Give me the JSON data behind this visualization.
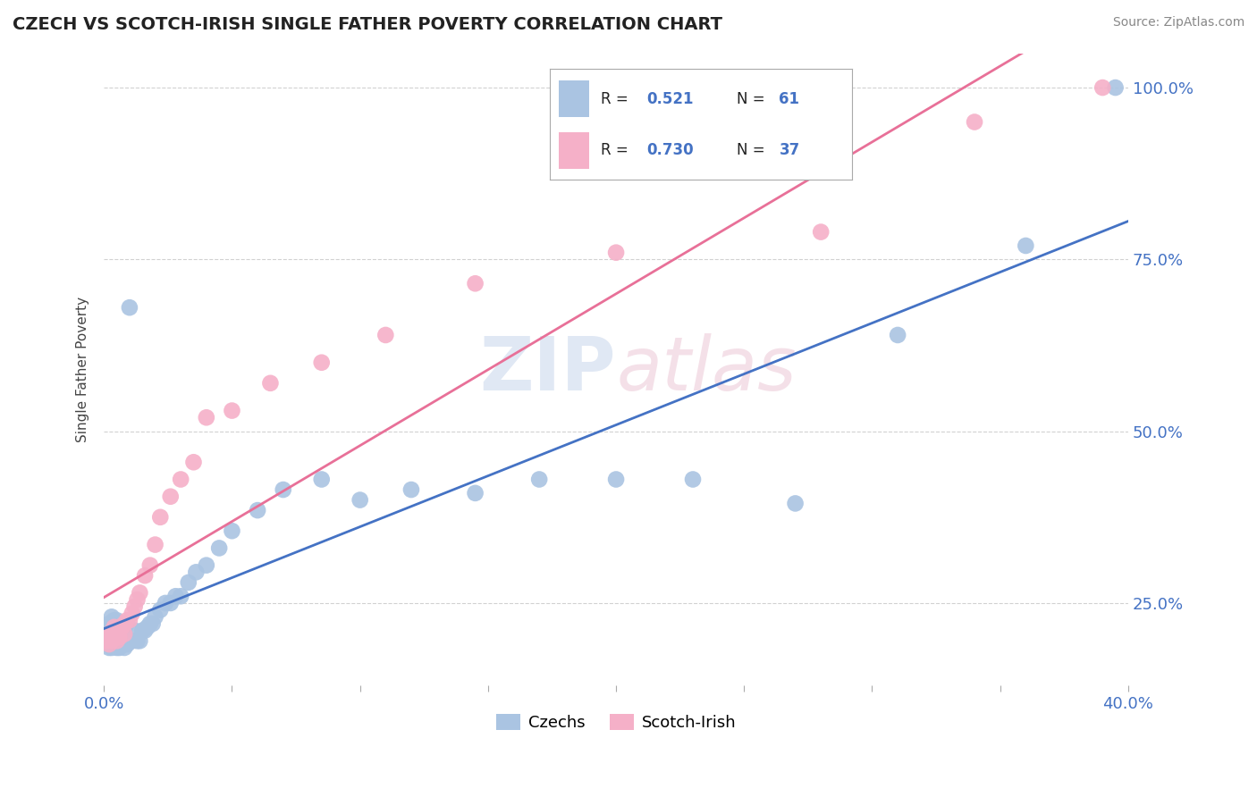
{
  "title": "CZECH VS SCOTCH-IRISH SINGLE FATHER POVERTY CORRELATION CHART",
  "source": "Source: ZipAtlas.com",
  "ylabel": "Single Father Poverty",
  "xlim": [
    0.0,
    0.4
  ],
  "ylim": [
    0.13,
    1.05
  ],
  "czech_R": 0.521,
  "czech_N": 61,
  "scotch_R": 0.73,
  "scotch_N": 37,
  "czech_color": "#aac4e2",
  "scotch_color": "#f5b0c8",
  "czech_line_color": "#4472c4",
  "scotch_line_color": "#e87098",
  "r_color": "#4472c4",
  "n_color": "#4472c4",
  "tick_color": "#4472c4",
  "background_color": "#ffffff",
  "grid_color": "#cccccc",
  "czech_x": [
    0.001,
    0.001,
    0.001,
    0.002,
    0.002,
    0.002,
    0.002,
    0.003,
    0.003,
    0.003,
    0.003,
    0.004,
    0.004,
    0.004,
    0.005,
    0.005,
    0.005,
    0.006,
    0.006,
    0.006,
    0.007,
    0.007,
    0.008,
    0.008,
    0.009,
    0.009,
    0.01,
    0.01,
    0.011,
    0.012,
    0.013,
    0.014,
    0.015,
    0.016,
    0.017,
    0.018,
    0.019,
    0.02,
    0.022,
    0.024,
    0.026,
    0.028,
    0.03,
    0.033,
    0.036,
    0.04,
    0.045,
    0.05,
    0.06,
    0.07,
    0.085,
    0.1,
    0.12,
    0.145,
    0.17,
    0.2,
    0.23,
    0.27,
    0.31,
    0.36,
    0.395
  ],
  "czech_y": [
    0.195,
    0.205,
    0.215,
    0.185,
    0.195,
    0.205,
    0.22,
    0.185,
    0.195,
    0.215,
    0.23,
    0.19,
    0.205,
    0.225,
    0.185,
    0.195,
    0.225,
    0.185,
    0.2,
    0.215,
    0.195,
    0.215,
    0.185,
    0.21,
    0.19,
    0.22,
    0.195,
    0.68,
    0.195,
    0.21,
    0.195,
    0.195,
    0.21,
    0.21,
    0.215,
    0.22,
    0.22,
    0.23,
    0.24,
    0.25,
    0.25,
    0.26,
    0.26,
    0.28,
    0.295,
    0.305,
    0.33,
    0.355,
    0.385,
    0.415,
    0.43,
    0.4,
    0.415,
    0.41,
    0.43,
    0.43,
    0.43,
    0.395,
    0.64,
    0.77,
    1.0
  ],
  "scotch_x": [
    0.001,
    0.002,
    0.002,
    0.003,
    0.003,
    0.004,
    0.004,
    0.005,
    0.005,
    0.006,
    0.006,
    0.007,
    0.008,
    0.008,
    0.009,
    0.01,
    0.011,
    0.012,
    0.013,
    0.014,
    0.016,
    0.018,
    0.02,
    0.022,
    0.026,
    0.03,
    0.035,
    0.04,
    0.05,
    0.065,
    0.085,
    0.11,
    0.145,
    0.2,
    0.28,
    0.34,
    0.39
  ],
  "scotch_y": [
    0.195,
    0.19,
    0.205,
    0.195,
    0.205,
    0.2,
    0.215,
    0.195,
    0.21,
    0.2,
    0.215,
    0.215,
    0.205,
    0.22,
    0.225,
    0.225,
    0.235,
    0.245,
    0.255,
    0.265,
    0.29,
    0.305,
    0.335,
    0.375,
    0.405,
    0.43,
    0.455,
    0.52,
    0.53,
    0.57,
    0.6,
    0.64,
    0.715,
    0.76,
    0.79,
    0.95,
    1.0
  ]
}
